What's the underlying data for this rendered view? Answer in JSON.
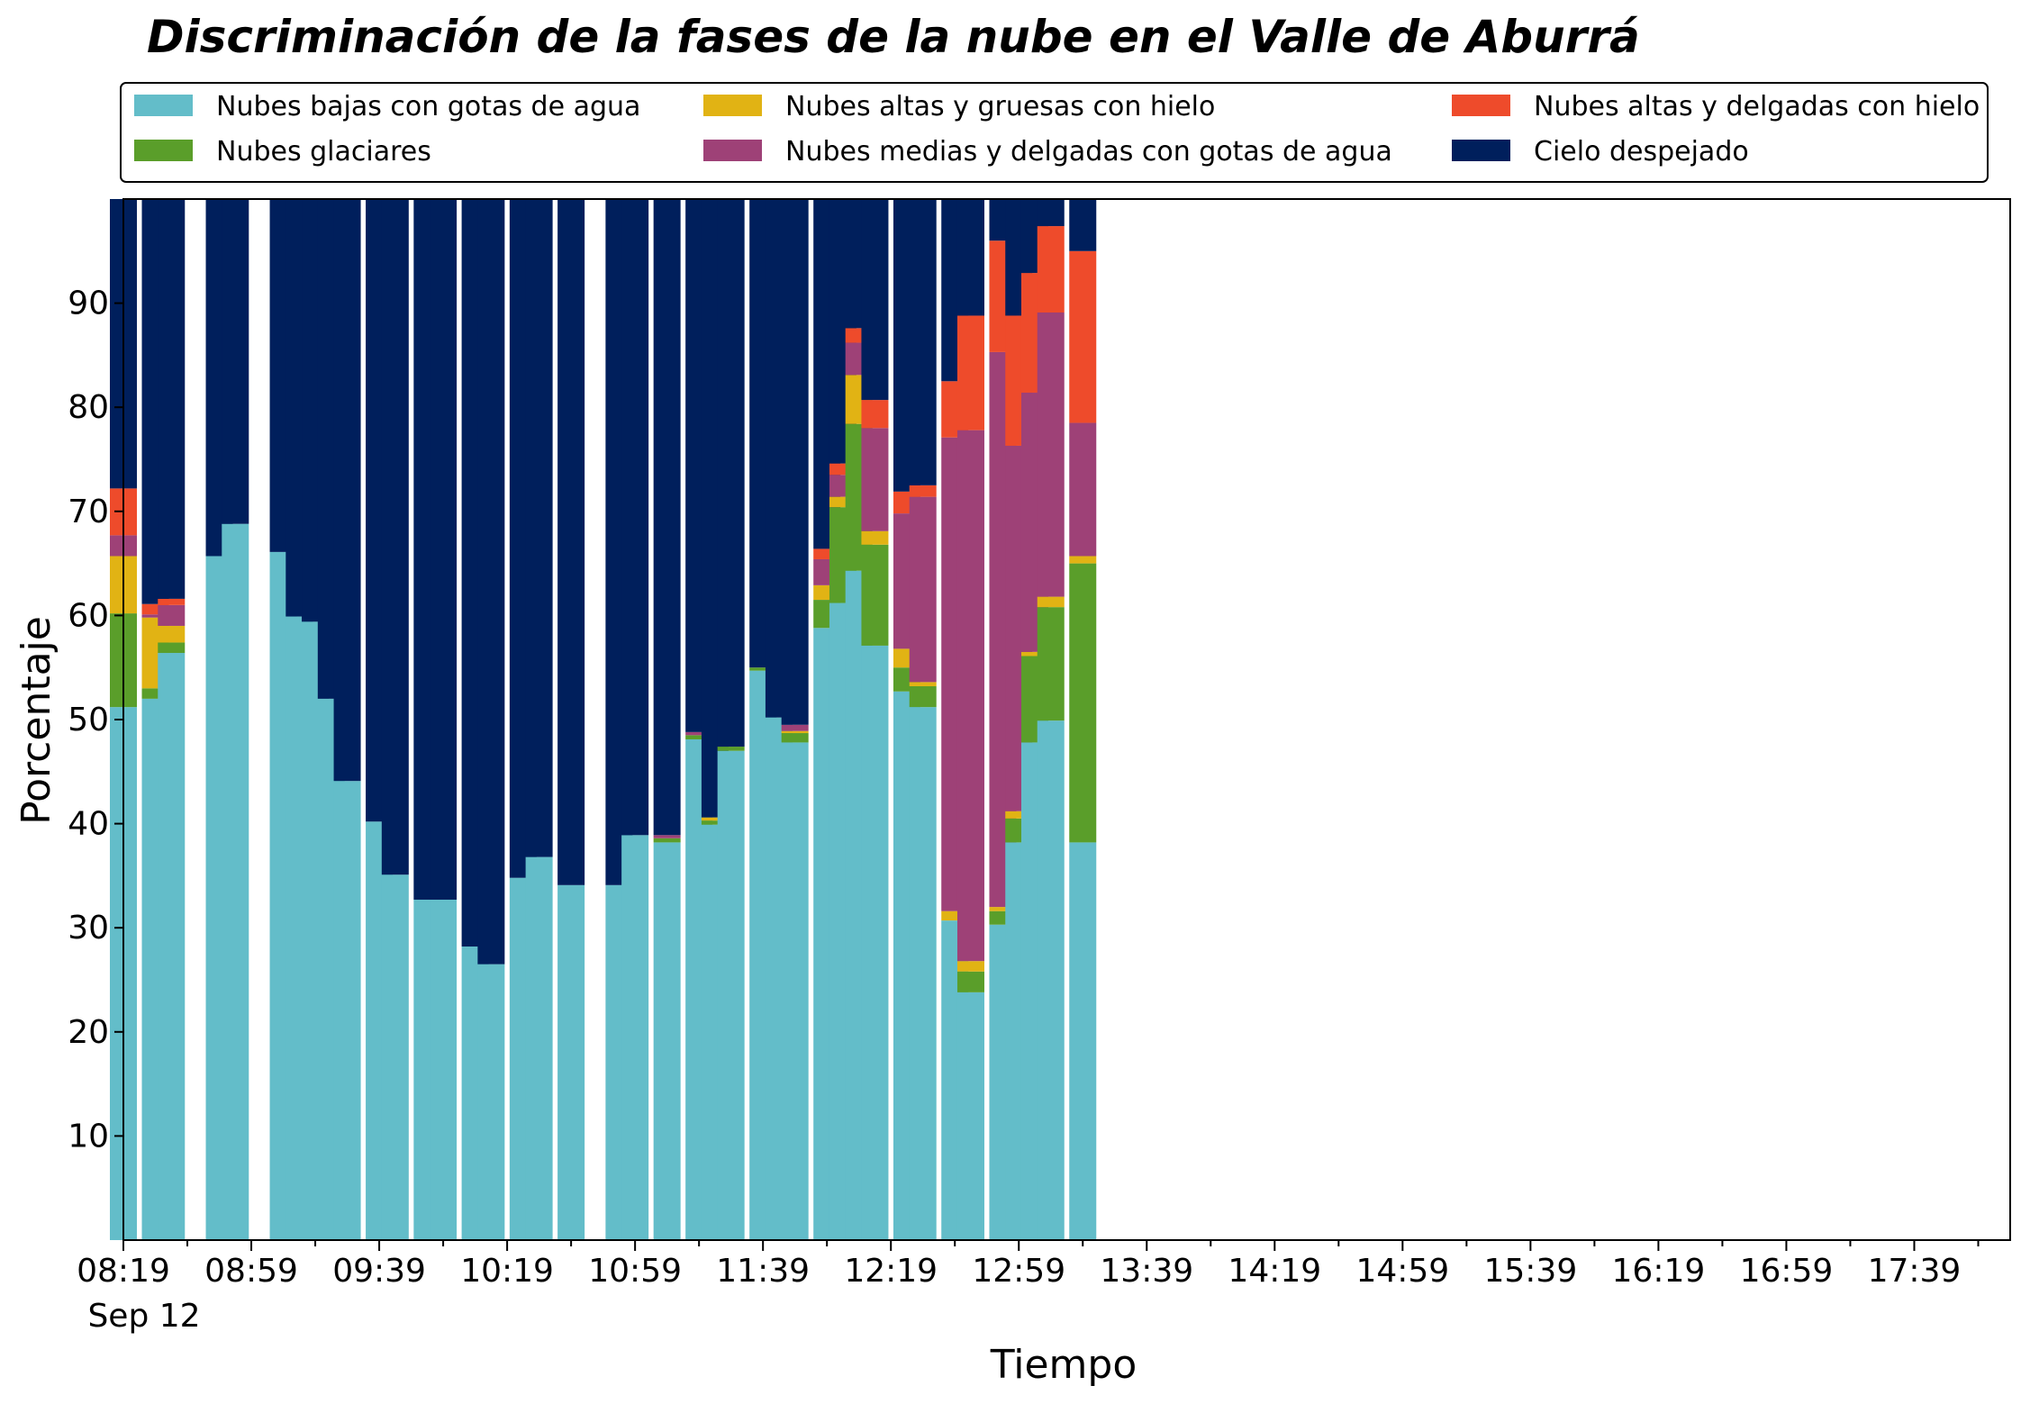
{
  "chart_data": {
    "type": "bar",
    "stacked": true,
    "title": "Discriminación de la fases de la nube en el Valle de Aburrá",
    "xlabel": "Tiempo",
    "ylabel": "Porcentaje",
    "ylim": [
      0,
      100
    ],
    "yticks": [
      10,
      20,
      30,
      40,
      50,
      60,
      70,
      80,
      90
    ],
    "x_start_minutes": 499,
    "x_step_minutes": 5,
    "x_end_minutes": 1089,
    "x_date_label": "Sep 12",
    "xtick_labels": [
      "08:19",
      "08:59",
      "09:39",
      "10:19",
      "10:59",
      "11:39",
      "12:19",
      "12:59",
      "13:39",
      "14:19",
      "14:59",
      "15:39",
      "16:19",
      "16:59",
      "17:39"
    ],
    "legend_position": "top",
    "series": [
      {
        "name": "Nubes bajas con gotas de agua",
        "color": "#63bdc9"
      },
      {
        "name": "Nubes glaciares",
        "color": "#5a9e2a"
      },
      {
        "name": "Nubes altas y gruesas con hielo",
        "color": "#e1b314"
      },
      {
        "name": "Nubes medias y delgadas con gotas de agua",
        "color": "#9e4177"
      },
      {
        "name": "Nubes altas y delgadas con hielo",
        "color": "#ee4b2b"
      },
      {
        "name": "Cielo despejado",
        "color": "#001f5c"
      }
    ],
    "bars": [
      {
        "time": "08:19",
        "values": [
          51.2,
          9.0,
          5.5,
          2.0,
          4.5,
          27.8
        ]
      },
      {
        "time": "08:29",
        "values": [
          52.0,
          1.0,
          6.8,
          0.3,
          1.0,
          38.9
        ]
      },
      {
        "time": "08:34",
        "values": [
          56.4,
          1.0,
          1.6,
          2.0,
          0.6,
          38.4
        ]
      },
      {
        "time": "08:49",
        "values": [
          65.7,
          0,
          0,
          0,
          0,
          34.3
        ]
      },
      {
        "time": "08:54",
        "values": [
          68.8,
          0,
          0,
          0,
          0,
          31.2
        ]
      },
      {
        "time": "09:09",
        "values": [
          66.1,
          0,
          0,
          0,
          0,
          33.9
        ]
      },
      {
        "time": "09:14",
        "values": [
          59.9,
          0,
          0,
          0,
          0,
          40.1
        ]
      },
      {
        "time": "09:19",
        "values": [
          59.4,
          0,
          0,
          0,
          0,
          40.6
        ]
      },
      {
        "time": "09:24",
        "values": [
          52.0,
          0,
          0,
          0,
          0,
          48.0
        ]
      },
      {
        "time": "09:29",
        "values": [
          44.1,
          0,
          0,
          0,
          0,
          55.9
        ]
      },
      {
        "time": "09:39",
        "values": [
          40.2,
          0,
          0,
          0,
          0,
          59.8
        ]
      },
      {
        "time": "09:44",
        "values": [
          35.1,
          0,
          0,
          0,
          0,
          64.9
        ]
      },
      {
        "time": "09:54",
        "values": [
          32.7,
          0,
          0,
          0,
          0,
          67.3
        ]
      },
      {
        "time": "09:59",
        "values": [
          32.7,
          0,
          0,
          0,
          0,
          67.3
        ]
      },
      {
        "time": "10:09",
        "values": [
          28.2,
          0,
          0,
          0,
          0,
          71.8
        ]
      },
      {
        "time": "10:14",
        "values": [
          26.5,
          0,
          0,
          0,
          0,
          73.5
        ]
      },
      {
        "time": "10:24",
        "values": [
          34.8,
          0,
          0,
          0,
          0,
          65.2
        ]
      },
      {
        "time": "10:29",
        "values": [
          36.8,
          0,
          0,
          0,
          0,
          63.2
        ]
      },
      {
        "time": "10:39",
        "values": [
          34.1,
          0,
          0,
          0,
          0,
          65.9
        ]
      },
      {
        "time": "10:54",
        "values": [
          34.1,
          0,
          0,
          0,
          0,
          65.9
        ]
      },
      {
        "time": "10:59",
        "values": [
          38.9,
          0,
          0,
          0,
          0,
          61.1
        ]
      },
      {
        "time": "11:09",
        "values": [
          38.2,
          0.4,
          0,
          0.3,
          0,
          61.1
        ]
      },
      {
        "time": "11:19",
        "values": [
          48.1,
          0.4,
          0,
          0.3,
          0,
          51.2
        ]
      },
      {
        "time": "11:24",
        "values": [
          39.9,
          0.4,
          0.3,
          0,
          0,
          59.4
        ]
      },
      {
        "time": "11:29",
        "values": [
          47.0,
          0.4,
          0,
          0,
          0,
          52.6
        ]
      },
      {
        "time": "11:39",
        "values": [
          54.7,
          0.3,
          0,
          0,
          0,
          45.0
        ]
      },
      {
        "time": "11:44",
        "values": [
          50.2,
          0,
          0,
          0,
          0,
          49.8
        ]
      },
      {
        "time": "11:49",
        "values": [
          47.8,
          0.9,
          0.2,
          0.6,
          0,
          50.5
        ]
      },
      {
        "time": "11:59",
        "values": [
          58.8,
          2.7,
          1.4,
          2.5,
          1.0,
          33.6
        ]
      },
      {
        "time": "12:04",
        "values": [
          61.2,
          9.2,
          1.0,
          2.1,
          1.1,
          25.4
        ]
      },
      {
        "time": "12:09",
        "values": [
          64.3,
          14.1,
          4.7,
          3.1,
          1.4,
          12.4
        ]
      },
      {
        "time": "12:14",
        "values": [
          57.1,
          9.7,
          1.3,
          9.9,
          2.7,
          19.3
        ]
      },
      {
        "time": "12:24",
        "values": [
          52.7,
          2.3,
          1.8,
          13.0,
          2.1,
          28.1
        ]
      },
      {
        "time": "12:29",
        "values": [
          51.2,
          2.0,
          0.4,
          17.8,
          1.1,
          27.5
        ]
      },
      {
        "time": "12:39",
        "values": [
          30.7,
          0,
          0.9,
          45.5,
          5.4,
          17.5
        ]
      },
      {
        "time": "12:44",
        "values": [
          23.8,
          2.0,
          1.0,
          51.0,
          11.0,
          11.2
        ]
      },
      {
        "time": "12:54",
        "values": [
          30.3,
          1.3,
          0.4,
          53.3,
          10.7,
          4.0
        ]
      },
      {
        "time": "12:59",
        "values": [
          38.2,
          2.3,
          0.7,
          35.1,
          12.5,
          11.2
        ]
      },
      {
        "time": "13:04",
        "values": [
          47.8,
          8.3,
          0.4,
          24.9,
          11.5,
          7.1
        ]
      },
      {
        "time": "13:09",
        "values": [
          49.9,
          10.9,
          1.0,
          27.3,
          8.3,
          2.6
        ]
      },
      {
        "time": "13:19",
        "values": [
          38.2,
          26.8,
          0.7,
          12.8,
          16.5,
          5.0
        ]
      }
    ]
  }
}
